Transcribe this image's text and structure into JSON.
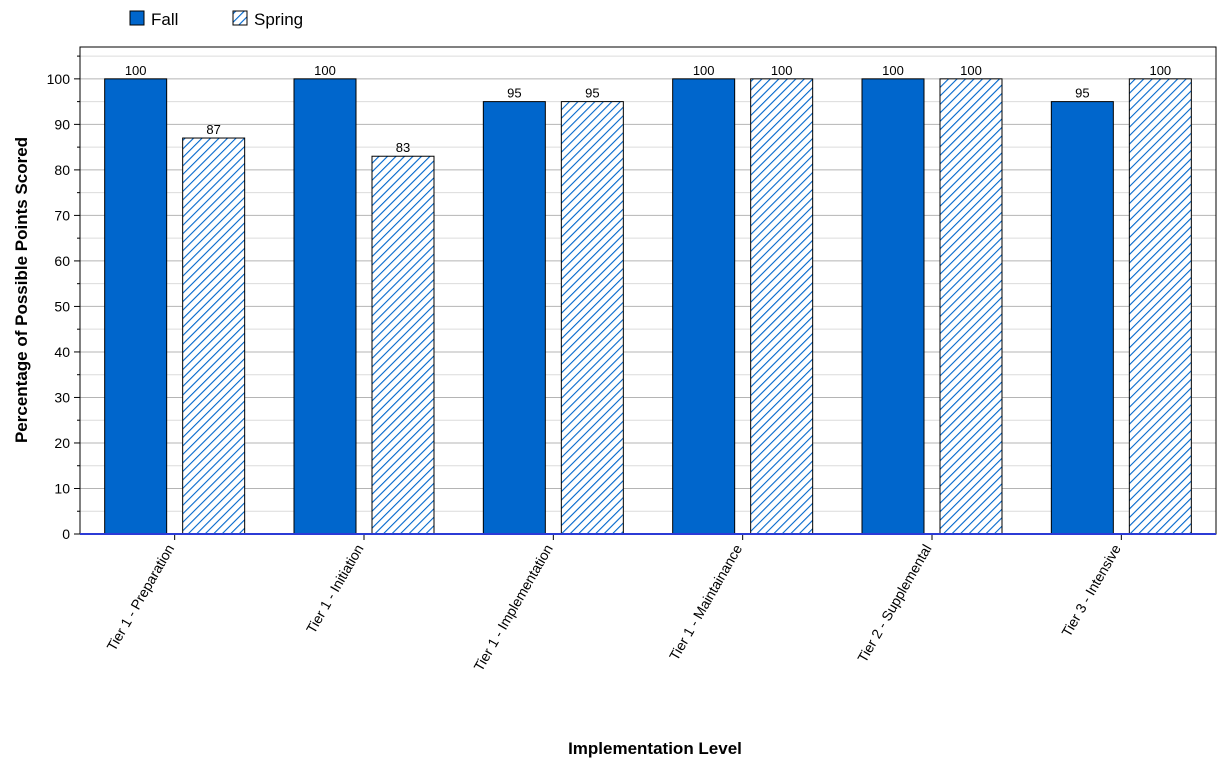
{
  "chart_data": {
    "type": "bar",
    "title": "",
    "xlabel": "Implementation Level",
    "ylabel": "Percentage of Possible Points Scored",
    "categories": [
      "Tier 1 - Preparation",
      "Tier 1 - Initiation",
      "Tier 1 - Implementation",
      "Tier 1 - Maintainance",
      "Tier 2 - Supplemental",
      "Tier 3 - Intensive"
    ],
    "series": [
      {
        "name": "Fall",
        "values": [
          100,
          100,
          95,
          100,
          100,
          95
        ],
        "color": "#0066cc",
        "fill": "solid"
      },
      {
        "name": "Spring",
        "values": [
          87,
          83,
          95,
          100,
          100,
          100
        ],
        "color": "#0066cc",
        "fill": "hatched"
      }
    ],
    "ylim": [
      0,
      107
    ],
    "yticks": [
      0,
      10,
      20,
      30,
      40,
      50,
      60,
      70,
      80,
      90,
      100
    ],
    "grid": true,
    "legend": "top-left",
    "show_data_labels": true
  }
}
